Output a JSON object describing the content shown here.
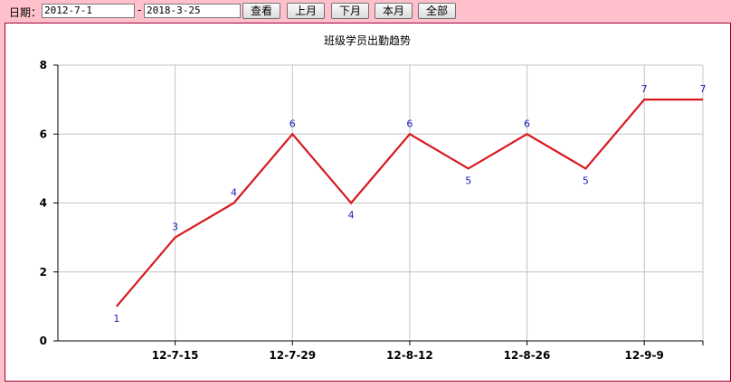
{
  "filters": {
    "date_label": "日期：",
    "start_date": "2012-7-1",
    "separator": "-",
    "end_date": "2018-3-25"
  },
  "buttons": {
    "query": "查看",
    "prev_month": "上月",
    "next_month": "下月",
    "this_month": "本月",
    "all": "全部"
  },
  "chart_data": {
    "type": "line",
    "title": "班级学员出勤趋势",
    "xlabel": "",
    "ylabel": "",
    "x": [
      "12-7-8",
      "12-7-15",
      "12-7-22",
      "12-7-29",
      "12-8-5",
      "12-8-12",
      "12-8-19",
      "12-8-26",
      "12-9-2",
      "12-9-9",
      "12-9-16"
    ],
    "x_tick_labels": [
      "12-7-15",
      "12-7-29",
      "12-8-12",
      "12-8-26",
      "12-9-9"
    ],
    "values": [
      1,
      3,
      4,
      6,
      4,
      6,
      5,
      6,
      5,
      7,
      7
    ],
    "y_ticks": [
      0,
      2,
      4,
      6,
      8
    ],
    "ylim": [
      0,
      8
    ],
    "grid": true,
    "line_color": "#d8181e",
    "label_color": "#1a1ab8"
  }
}
